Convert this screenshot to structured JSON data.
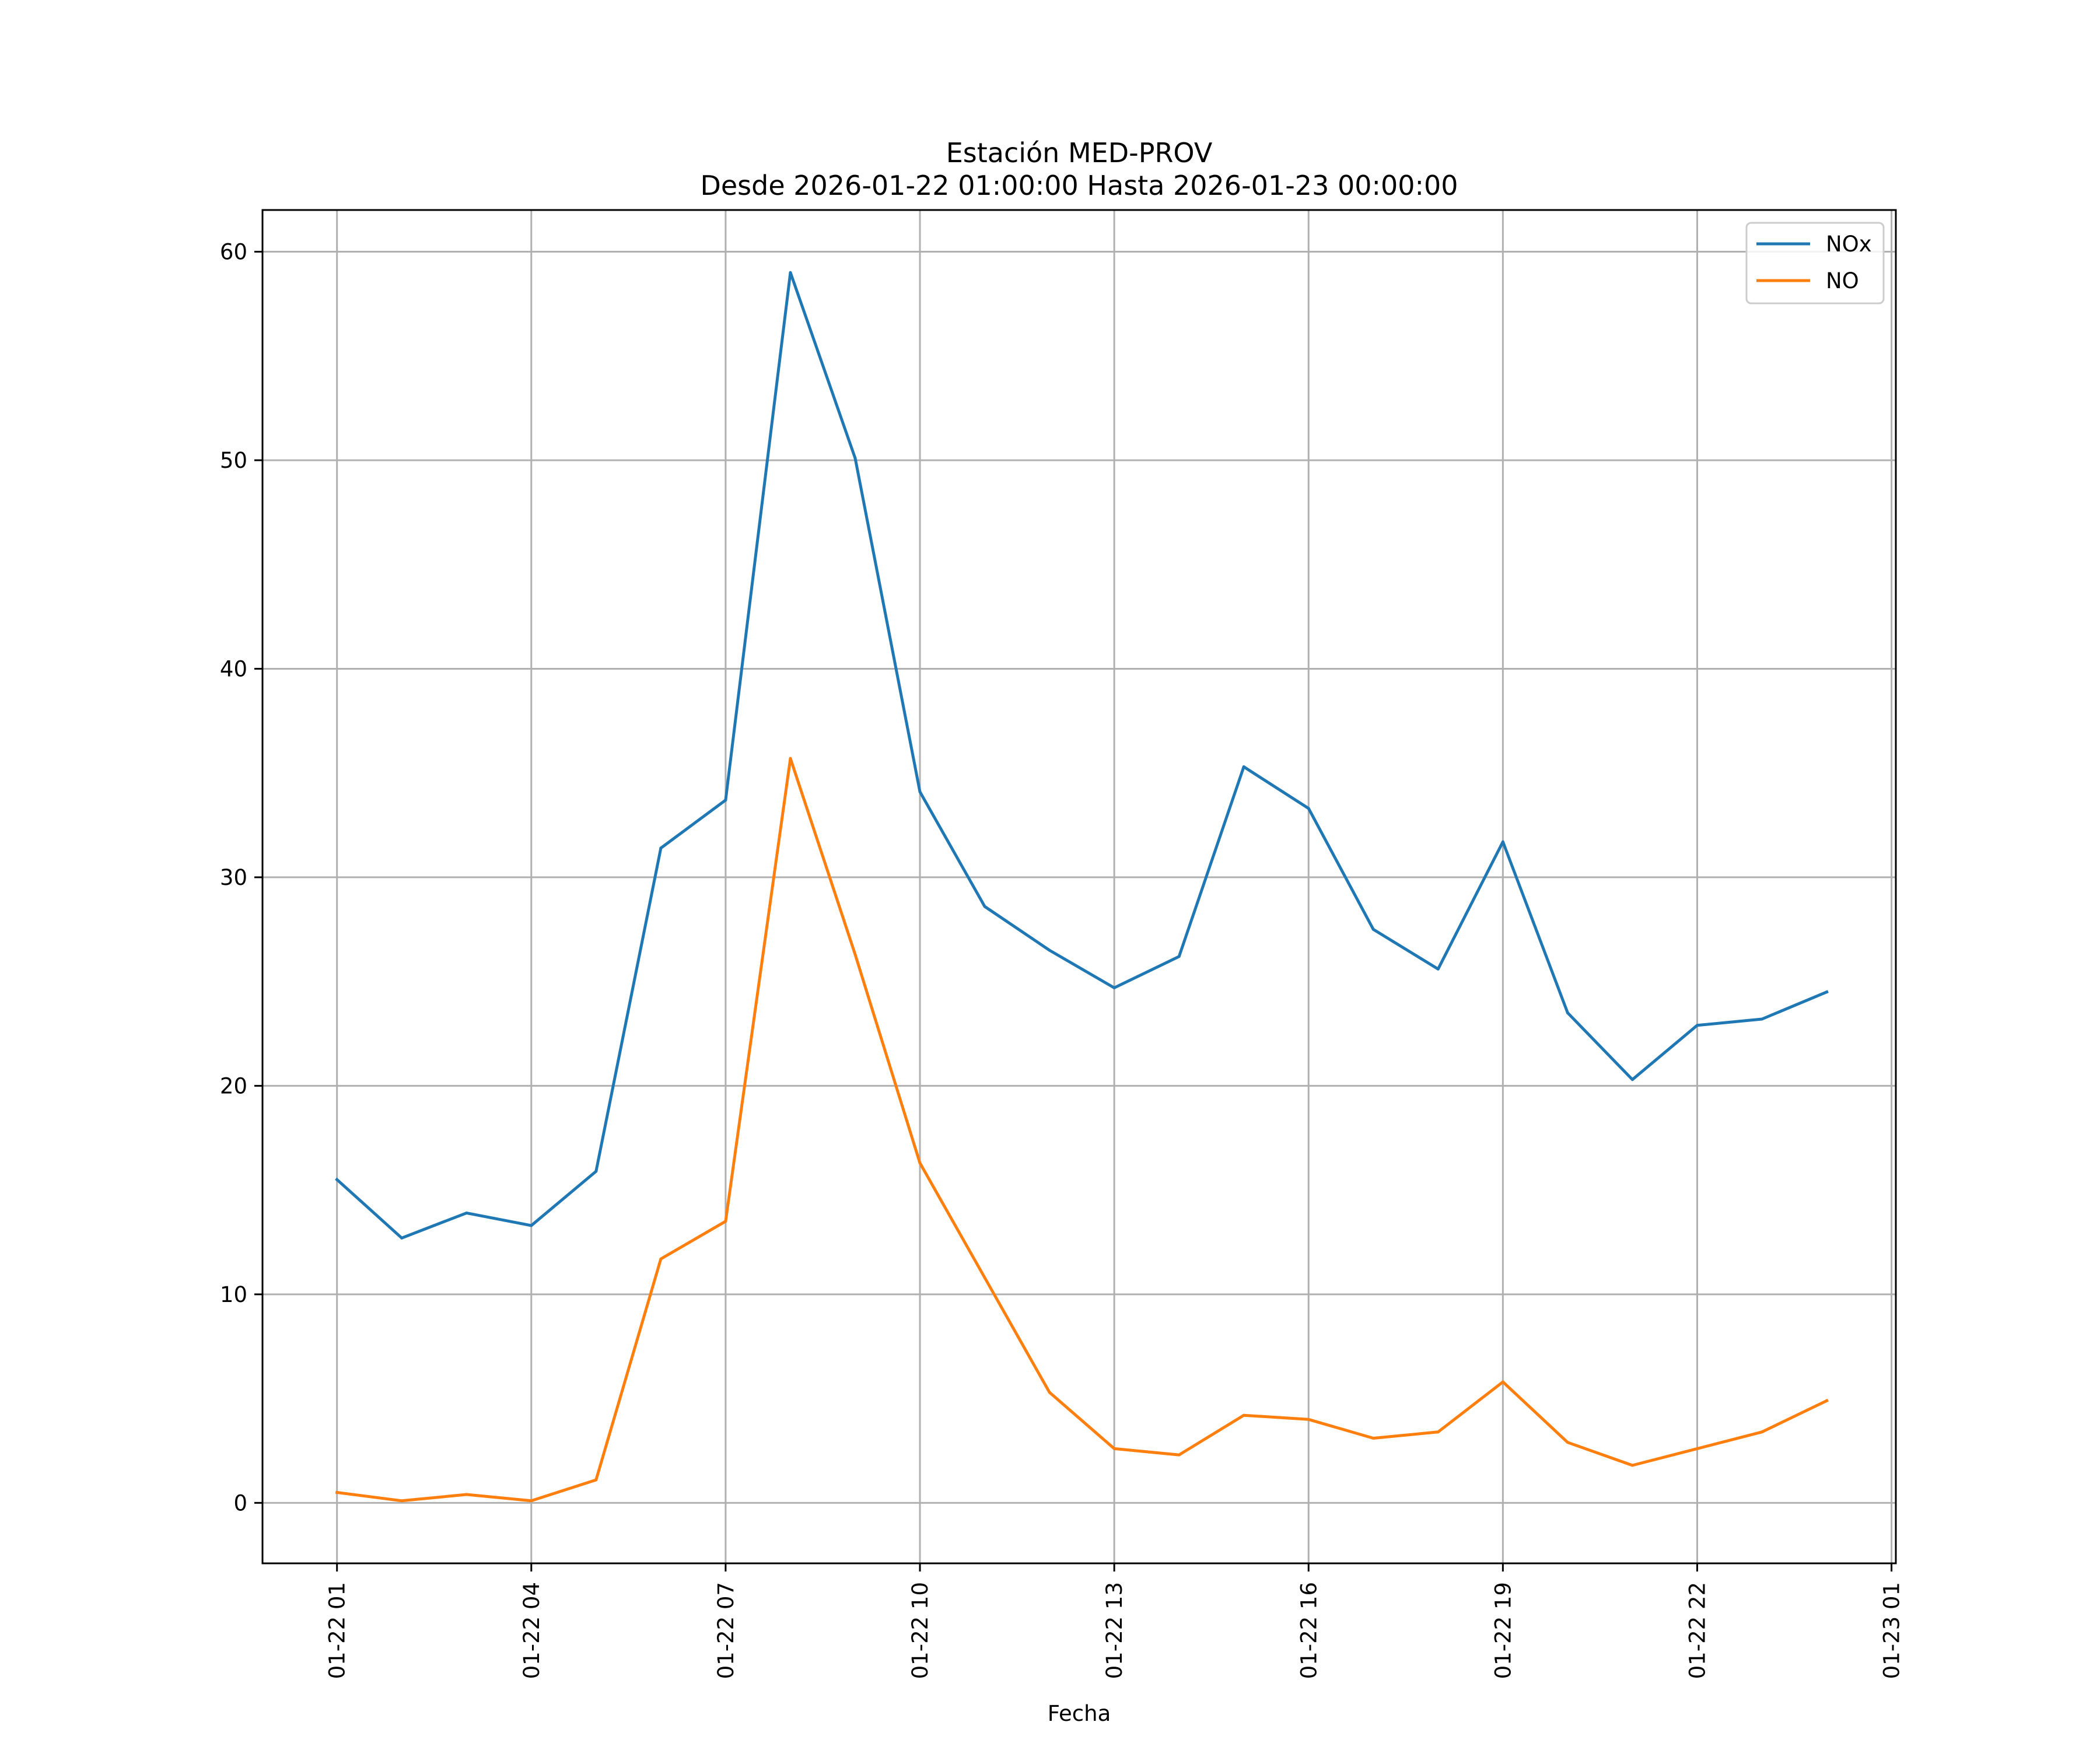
{
  "chart_data": {
    "type": "line",
    "title": "Estación MED-PROV",
    "subtitle": "Desde 2026-01-22 01:00:00 Hasta 2026-01-23 00:00:00",
    "xlabel": "Fecha",
    "ylabel": "",
    "x": [
      "2026-01-22 01:00",
      "2026-01-22 02:00",
      "2026-01-22 03:00",
      "2026-01-22 04:00",
      "2026-01-22 05:00",
      "2026-01-22 06:00",
      "2026-01-22 07:00",
      "2026-01-22 08:00",
      "2026-01-22 09:00",
      "2026-01-22 10:00",
      "2026-01-22 11:00",
      "2026-01-22 12:00",
      "2026-01-22 13:00",
      "2026-01-22 14:00",
      "2026-01-22 15:00",
      "2026-01-22 16:00",
      "2026-01-22 17:00",
      "2026-01-22 18:00",
      "2026-01-22 19:00",
      "2026-01-22 20:00",
      "2026-01-22 21:00",
      "2026-01-22 22:00",
      "2026-01-22 23:00",
      "2026-01-23 00:00"
    ],
    "series": [
      {
        "name": "NOx",
        "color": "#1f77b4",
        "values": [
          15.5,
          12.7,
          13.9,
          13.3,
          15.9,
          31.4,
          33.7,
          59.0,
          50.1,
          34.1,
          28.6,
          26.5,
          24.7,
          26.2,
          35.3,
          33.3,
          27.5,
          25.6,
          31.7,
          23.5,
          20.3,
          22.9,
          23.2,
          24.5
        ]
      },
      {
        "name": "NO",
        "color": "#ff7f0e",
        "values": [
          0.5,
          0.1,
          0.4,
          0.1,
          1.1,
          11.7,
          13.5,
          35.7,
          26.3,
          16.3,
          10.8,
          5.3,
          2.6,
          2.3,
          4.2,
          4.0,
          3.1,
          3.4,
          5.8,
          2.9,
          1.8,
          2.6,
          3.4,
          4.9
        ]
      }
    ],
    "xticks": [
      {
        "x": "2026-01-22 01:00",
        "label": "01-22 01"
      },
      {
        "x": "2026-01-22 04:00",
        "label": "01-22 04"
      },
      {
        "x": "2026-01-22 07:00",
        "label": "01-22 07"
      },
      {
        "x": "2026-01-22 10:00",
        "label": "01-22 10"
      },
      {
        "x": "2026-01-22 13:00",
        "label": "01-22 13"
      },
      {
        "x": "2026-01-22 16:00",
        "label": "01-22 16"
      },
      {
        "x": "2026-01-22 19:00",
        "label": "01-22 19"
      },
      {
        "x": "2026-01-22 22:00",
        "label": "01-22 22"
      },
      {
        "x": "2026-01-23 01:00",
        "label": "01-23 01"
      }
    ],
    "yticks": [
      0,
      10,
      20,
      30,
      40,
      50,
      60
    ],
    "xlim": [
      "2026-01-21 23:51",
      "2026-01-23 01:04"
    ],
    "ylim": [
      -2.9,
      62
    ],
    "grid": true,
    "legend": "top-right"
  }
}
